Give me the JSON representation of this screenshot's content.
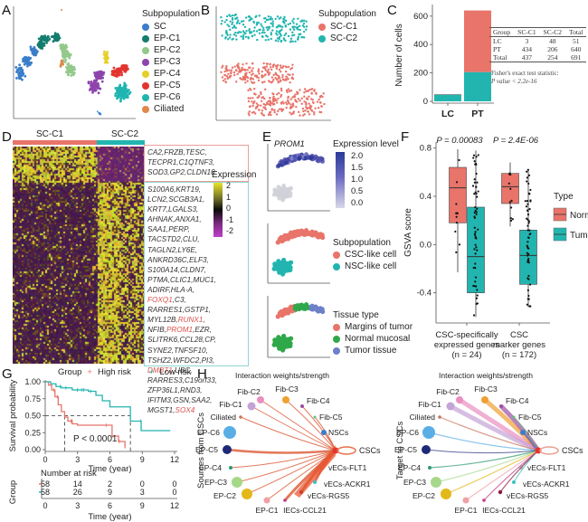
{
  "panels": {
    "A": {
      "letter": "A",
      "legend_title": "Subpopulation",
      "legend": [
        {
          "label": "SC",
          "color": "#3a7ec9"
        },
        {
          "label": "EP-C1",
          "color": "#137d6e"
        },
        {
          "label": "EP-C2",
          "color": "#93c98a"
        },
        {
          "label": "EP-C3",
          "color": "#8e44ad"
        },
        {
          "label": "EP-C4",
          "color": "#e6cf28"
        },
        {
          "label": "EP-C5",
          "color": "#e3342f"
        },
        {
          "label": "EP-C6",
          "color": "#1fb5b0"
        },
        {
          "label": "Ciliated",
          "color": "#e0884a"
        }
      ]
    },
    "B": {
      "letter": "B",
      "legend_title": "Subpopulation",
      "legend": [
        {
          "label": "SC-C1",
          "color": "#e8746a"
        },
        {
          "label": "SC-C2",
          "color": "#22b5b0"
        }
      ]
    },
    "C": {
      "letter": "C",
      "table": {
        "headers": [
          "Group",
          "SC-C1",
          "SC-C2",
          "Total"
        ],
        "rows": [
          [
            "LC",
            "3",
            "48",
            "51"
          ],
          [
            "PT",
            "434",
            "206",
            "640"
          ],
          [
            "Total",
            "437",
            "254",
            "691"
          ]
        ],
        "note_line1": "Fisher's exact test statistic:",
        "note_line2": "P value < 2.2e-16"
      }
    },
    "D": {
      "letter": "D",
      "groups": [
        {
          "label": "SC-C1",
          "color": "#e8746a"
        },
        {
          "label": "SC-C2",
          "color": "#22b5b0"
        }
      ],
      "legend_title": "Expression",
      "legend_ticks": [
        "2",
        "1",
        "0",
        "-1",
        "-2"
      ],
      "genes_c1": [
        {
          "text": "CA2,FRZB,TESC,"
        },
        {
          "text": "TECPR1,C1QTNF3,"
        },
        {
          "text": "SOD3,GP2,CLDN10"
        }
      ],
      "genes_c2": [
        [
          {
            "t": "S100A6,KRT19,"
          }
        ],
        [
          {
            "t": "LCN2,SCGB3A1,"
          }
        ],
        [
          {
            "t": "KRT7,LGALS3,"
          }
        ],
        [
          {
            "t": "AHNAK,ANXA1,"
          }
        ],
        [
          {
            "t": "SAA1,PERP,"
          }
        ],
        [
          {
            "t": "TACSTD2,CLU,"
          }
        ],
        [
          {
            "t": "TAGLN2,LY6E,"
          }
        ],
        [
          {
            "t": "ANKRD36C,ELF3,"
          }
        ],
        [
          {
            "t": "S100A14,CLDN7,"
          }
        ],
        [
          {
            "t": "PTMA,CLIC1,MUC1,"
          }
        ],
        [
          {
            "t": "ADIRF,HLA-A,"
          }
        ],
        [
          {
            "t": "FOXQ1",
            "red": true
          },
          {
            "t": ",C3,"
          }
        ],
        [
          {
            "t": "RARRES1,GSTP1,"
          }
        ],
        [
          {
            "t": "MYL12B,"
          },
          {
            "t": "RUNX1",
            "red": true
          },
          {
            "t": ","
          }
        ],
        [
          {
            "t": "NFIB,"
          },
          {
            "t": "PROM1",
            "red": true
          },
          {
            "t": ",EZR,"
          }
        ],
        [
          {
            "t": "SLITRK6,CCL28,CP,"
          }
        ],
        [
          {
            "t": "SYNE2,TNFSF10,"
          }
        ],
        [
          {
            "t": "TSHZ2,WFDC2,PI3,"
          }
        ],
        [
          {
            "t": "DMBT1",
            "red": true
          },
          {
            "t": ",UBC,"
          }
        ],
        [
          {
            "t": "RARRES3,C19orf33,"
          }
        ],
        [
          {
            "t": "ZFP36L1,RND3,"
          }
        ],
        [
          {
            "t": "IFITM3,GSN,SAA2,"
          }
        ],
        [
          {
            "t": "MGST1,"
          },
          {
            "t": "SOX4",
            "red": true
          }
        ]
      ]
    },
    "E": {
      "letter": "E",
      "gene_title": "PROM1",
      "expr_legend_title": "Expression level",
      "expr_ticks": [
        "2.0",
        "1.5",
        "1.0",
        "0.5",
        "0.0"
      ],
      "subpop_title": "Subpopulation",
      "subpop_legend": [
        {
          "label": "CSC-like cell",
          "color": "#e8746a"
        },
        {
          "label": "NSC-like cell",
          "color": "#22b5b0"
        }
      ],
      "tissue_title": "Tissue type",
      "tissue_legend": [
        {
          "label": "Margins of tumor",
          "color": "#e8746a"
        },
        {
          "label": "Normal mucosal",
          "color": "#2fa84a"
        },
        {
          "label": "Tumor tissue",
          "color": "#6d80c8"
        }
      ]
    },
    "G": {
      "letter": "G",
      "legend_prefix": "Group",
      "legend": [
        {
          "label": "High risk",
          "color": "#e8746a"
        },
        {
          "label": "Low risk",
          "color": "#22b5b0"
        }
      ],
      "risk_title": "Number at risk",
      "risk_ylabel": "Group",
      "risk_rows": [
        {
          "color": "#e8746a",
          "values": [
            "58",
            "14",
            "2",
            "0",
            "0"
          ]
        },
        {
          "color": "#22b5b0",
          "values": [
            "58",
            "26",
            "9",
            "3",
            "0"
          ]
        }
      ],
      "risk_xlabel": "Time (year)"
    },
    "H": {
      "letter": "H",
      "left_title": "Interaction weights/strength",
      "right_title": "Interaction weights/strength",
      "left_ylabel": "Sources from CSCs",
      "right_ylabel": "Target to CSCs",
      "center_label": "CSCs",
      "nodes": [
        {
          "label": "Fib-C2",
          "color": "#e98fc2"
        },
        {
          "label": "Fib-C3",
          "color": "#f0a030"
        },
        {
          "label": "Fib-C1",
          "color": "#c4a3d6"
        },
        {
          "label": "Fib-C4",
          "color": "#9b4fa0"
        },
        {
          "label": "Ciliated",
          "color": "#c8765a"
        },
        {
          "label": "Fib-C5",
          "color": "#5fbf7a"
        },
        {
          "label": "EP-C6",
          "color": "#5aaee6"
        },
        {
          "label": "NSCs",
          "color": "#3a7ec9"
        },
        {
          "label": "EP-C5",
          "color": "#1e2a78"
        },
        {
          "label": "EP-C4",
          "color": "#2e9a6e"
        },
        {
          "label": "vECs-FLT1",
          "color": "#c8c8cc"
        },
        {
          "label": "EP-C3",
          "color": "#a6d88a"
        },
        {
          "label": "vECs-ACKR1",
          "color": "#3ac4c4"
        },
        {
          "label": "EP-C2",
          "color": "#e3b81a"
        },
        {
          "label": "vECs-RGS5",
          "color": "#8b1a3a"
        },
        {
          "label": "EP-C1",
          "color": "#f0a0a8"
        },
        {
          "label": "IECs-CCL21",
          "color": "#c23b88"
        }
      ]
    }
  },
  "chart_data": [
    {
      "panel": "C",
      "type": "bar",
      "stacked": true,
      "categories": [
        "LC",
        "PT"
      ],
      "series": [
        {
          "name": "SC-C2",
          "color": "#22b5b0",
          "values": [
            48,
            206
          ]
        },
        {
          "name": "SC-C1",
          "color": "#e8746a",
          "values": [
            3,
            434
          ]
        }
      ],
      "ylabel": "Number of cells",
      "xlabel": "",
      "ylim": [
        0,
        650
      ],
      "yticks": [
        0,
        200,
        400,
        600
      ]
    },
    {
      "panel": "F",
      "type": "box",
      "ylabel": "GSVA score",
      "ylim": [
        -0.65,
        0.85
      ],
      "yticks": [
        -0.4,
        0.0,
        0.4,
        0.8
      ],
      "ytick_labels": [
        "-0.4",
        "0.0",
        "0.4",
        "0.8"
      ],
      "legend_title": "Type",
      "legend": [
        {
          "label": "Normal",
          "color": "#e8746a"
        },
        {
          "label": "Tumor",
          "color": "#22b5b0"
        }
      ],
      "groups": [
        {
          "label_lines": [
            "CSC-specifically",
            "expressed genes",
            "(n = 24)"
          ],
          "p_label": "P = 0.00083",
          "boxes": [
            {
              "type": "Normal",
              "q1": 0.18,
              "median": 0.47,
              "q3": 0.64,
              "min": -0.23,
              "max": 0.79
            },
            {
              "type": "Tumor",
              "q1": -0.4,
              "median": -0.1,
              "q3": 0.31,
              "min": -0.6,
              "max": 0.78
            }
          ]
        },
        {
          "label_lines": [
            "CSC",
            "marker genes",
            "(n = 172)"
          ],
          "p_label": "P = 2.4E-06",
          "boxes": [
            {
              "type": "Normal",
              "q1": 0.34,
              "median": 0.48,
              "q3": 0.59,
              "min": 0.15,
              "max": 0.68
            },
            {
              "type": "Tumor",
              "q1": -0.33,
              "median": -0.09,
              "q3": 0.12,
              "min": -0.52,
              "max": 0.62
            }
          ]
        }
      ]
    },
    {
      "panel": "G",
      "type": "line",
      "step": true,
      "ylabel": "Survival probability",
      "xlabel": "Time (year)",
      "xlim": [
        0,
        12
      ],
      "ylim": [
        0,
        1
      ],
      "xticks": [
        0,
        3,
        6,
        9,
        12
      ],
      "yticks": [
        0,
        0.25,
        0.5,
        0.75,
        1.0
      ],
      "ytick_labels": [
        "0.00",
        "0.25",
        "0.50",
        "0.75",
        "1.00"
      ],
      "annotation": "P < 0.0001",
      "median_lines": [
        1.8,
        7.9
      ],
      "series": [
        {
          "name": "High risk",
          "color": "#e8746a",
          "x": [
            0,
            0.3,
            0.6,
            0.9,
            1.2,
            1.5,
            1.8,
            2.1,
            2.5,
            3.0,
            5.8,
            6.2,
            6.8,
            7.4
          ],
          "y": [
            1.0,
            0.95,
            0.88,
            0.78,
            0.66,
            0.56,
            0.48,
            0.42,
            0.38,
            0.36,
            0.36,
            0.2,
            0.12,
            0.02
          ]
        },
        {
          "name": "Low risk",
          "color": "#22b5b0",
          "x": [
            0,
            0.5,
            1.0,
            1.5,
            2.5,
            4.0,
            4.7,
            5.3,
            6.0,
            7.9,
            8.9,
            11.6
          ],
          "y": [
            1.0,
            0.97,
            0.93,
            0.91,
            0.88,
            0.86,
            0.8,
            0.72,
            0.63,
            0.42,
            0.28,
            0.28
          ]
        }
      ]
    }
  ]
}
